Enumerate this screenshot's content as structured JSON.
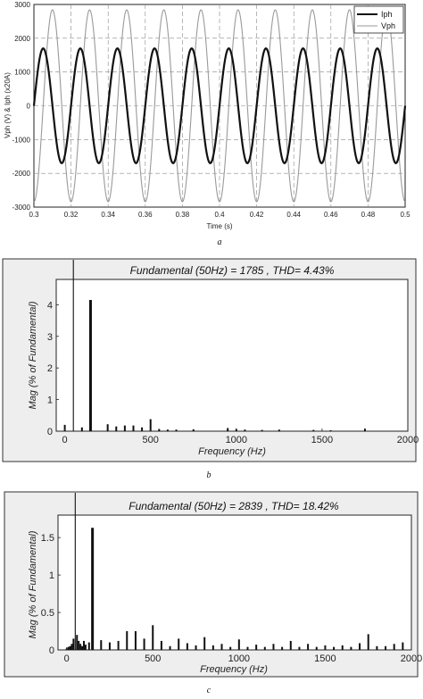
{
  "chart_data": [
    {
      "type": "line",
      "caption": "a",
      "xlabel": "Time (s)",
      "ylabel": "Vph (V) & Iph (x20A)",
      "xlim": [
        0.3,
        0.5
      ],
      "ylim": [
        -3000,
        3000
      ],
      "xticks": [
        0.3,
        0.32,
        0.34,
        0.36,
        0.38,
        0.4,
        0.42,
        0.44,
        0.46,
        0.48,
        0.5
      ],
      "xtick_labels": [
        "0.3",
        "0.32",
        "0.34",
        "0.36",
        "0.38",
        "0.4",
        "0.42",
        "0.44",
        "0.46",
        "0.48",
        "0.5"
      ],
      "yticks": [
        -3000,
        -2000,
        -1000,
        0,
        1000,
        2000,
        3000
      ],
      "ytick_labels": [
        "-3000",
        "-2000",
        "-1000",
        "0",
        "1000",
        "2000",
        "3000"
      ],
      "grid": true,
      "legend_position": "top-right",
      "series": [
        {
          "name": "Iph",
          "kind": "sine",
          "amplitude": 1700,
          "frequency_hz": 50,
          "zero_crossing_rising_s": 0.3,
          "color": "#111111"
        },
        {
          "name": "Vph",
          "kind": "sine",
          "amplitude": 2840,
          "frequency_hz": 50,
          "zero_crossing_rising_s": 0.305,
          "color": "#9a9a9a"
        }
      ]
    },
    {
      "type": "bar",
      "caption": "b",
      "title": "Fundamental (50Hz) = 1785 , THD= 4.43%",
      "xlabel": "Frequency (Hz)",
      "ylabel": "Mag (% of Fundamental)",
      "xlim": [
        -50,
        2000
      ],
      "ylim": [
        0,
        4.8
      ],
      "xticks": [
        0,
        500,
        1000,
        1500,
        2000
      ],
      "xtick_labels": [
        "0",
        "500",
        "1000",
        "1500",
        "2000"
      ],
      "yticks": [
        0,
        1,
        2,
        3,
        4
      ],
      "ytick_labels": [
        "0",
        "1",
        "2",
        "3",
        "4"
      ],
      "fundamental_marker_hz": 50,
      "x": [
        0,
        100,
        150,
        250,
        300,
        350,
        400,
        450,
        500,
        550,
        600,
        650,
        750,
        950,
        1000,
        1050,
        1150,
        1250,
        1450,
        1550,
        1750
      ],
      "values": [
        0.2,
        0.12,
        4.15,
        0.22,
        0.15,
        0.18,
        0.18,
        0.12,
        0.38,
        0.07,
        0.05,
        0.05,
        0.06,
        0.1,
        0.07,
        0.05,
        0.04,
        0.05,
        0.04,
        0.03,
        0.08
      ]
    },
    {
      "type": "bar",
      "caption": "c",
      "title": "Fundamental (50Hz) = 2839 , THD= 18.42%",
      "xlabel": "Frequency (Hz)",
      "ylabel": "Mag (% of Fundamental)",
      "xlim": [
        -50,
        2000
      ],
      "ylim": [
        0,
        1.8
      ],
      "xticks": [
        0,
        500,
        1000,
        1500,
        2000
      ],
      "xtick_labels": [
        "0",
        "500",
        "1000",
        "1500",
        "2000"
      ],
      "yticks": [
        0,
        0.5,
        1,
        1.5
      ],
      "ytick_labels": [
        "0",
        "0.5",
        "1",
        "1.5"
      ],
      "fundamental_marker_hz": 50,
      "x": [
        0,
        10,
        20,
        30,
        40,
        60,
        70,
        80,
        90,
        100,
        110,
        130,
        150,
        200,
        250,
        300,
        350,
        400,
        450,
        500,
        550,
        600,
        650,
        700,
        750,
        800,
        850,
        900,
        950,
        1000,
        1050,
        1100,
        1150,
        1200,
        1250,
        1300,
        1350,
        1400,
        1450,
        1500,
        1550,
        1600,
        1650,
        1700,
        1750,
        1800,
        1850,
        1900,
        1950
      ],
      "values": [
        0.02,
        0.04,
        0.05,
        0.08,
        0.15,
        0.2,
        0.12,
        0.08,
        0.05,
        0.12,
        0.07,
        0.1,
        1.63,
        0.13,
        0.1,
        0.12,
        0.25,
        0.25,
        0.15,
        0.33,
        0.12,
        0.05,
        0.15,
        0.09,
        0.06,
        0.17,
        0.06,
        0.08,
        0.04,
        0.14,
        0.04,
        0.07,
        0.04,
        0.08,
        0.04,
        0.12,
        0.04,
        0.08,
        0.04,
        0.06,
        0.04,
        0.06,
        0.04,
        0.09,
        0.21,
        0.05,
        0.05,
        0.08,
        0.1
      ]
    }
  ]
}
